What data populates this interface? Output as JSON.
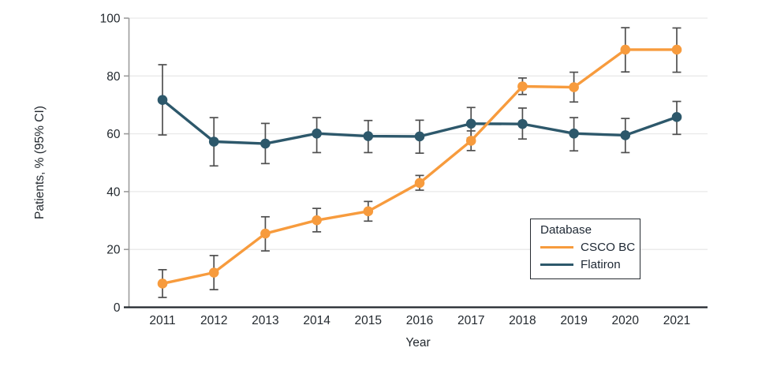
{
  "figure": {
    "background": "#ffffff"
  },
  "chart_data": {
    "type": "line",
    "title": "",
    "xlabel": "Year",
    "ylabel": "Patients, % (95% CI)",
    "x": [
      2011,
      2012,
      2013,
      2014,
      2015,
      2016,
      2017,
      2018,
      2019,
      2020,
      2021
    ],
    "ylim": [
      0,
      100
    ],
    "yticks": [
      0,
      20,
      40,
      60,
      80,
      100
    ],
    "grid": true,
    "legend_title": "Database",
    "legend_position": "inside-lower-right",
    "error_bars": "95% CI whiskers with caps on every point",
    "series": [
      {
        "name": "CSCO BC",
        "color": "#F79B3D",
        "values": [
          8.2,
          12.0,
          25.5,
          30.1,
          33.2,
          43.0,
          57.6,
          76.4,
          76.1,
          89.1,
          89.1
        ],
        "ci_low": [
          3.4,
          6.1,
          19.5,
          26.1,
          29.8,
          40.5,
          54.2,
          73.6,
          71.0,
          81.4,
          81.3
        ],
        "ci_high": [
          13.0,
          17.9,
          31.3,
          34.2,
          36.6,
          45.6,
          61.0,
          79.3,
          81.3,
          96.7,
          96.6
        ]
      },
      {
        "name": "Flatiron",
        "color": "#2D586B",
        "values": [
          71.7,
          57.3,
          56.6,
          60.1,
          59.2,
          59.1,
          63.5,
          63.4,
          60.1,
          59.5,
          65.8
        ],
        "ci_low": [
          59.6,
          48.9,
          49.7,
          53.5,
          53.5,
          53.3,
          58.5,
          58.2,
          54.1,
          53.5,
          59.8
        ],
        "ci_high": [
          83.9,
          65.6,
          63.6,
          65.6,
          64.6,
          64.7,
          69.1,
          68.9,
          65.6,
          65.3,
          71.2
        ]
      }
    ]
  }
}
